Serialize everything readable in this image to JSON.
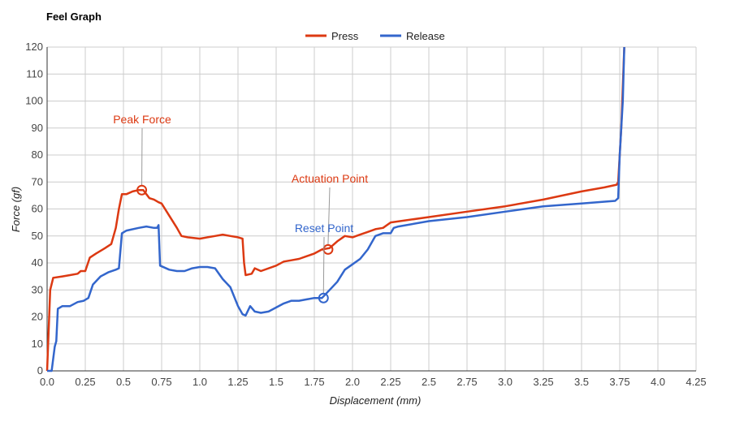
{
  "chart_data": {
    "type": "line",
    "title": "Feel Graph",
    "xlabel": "Displacement (mm)",
    "ylabel": "Force (gf)",
    "xlim": [
      0,
      4.25
    ],
    "ylim": [
      0,
      120
    ],
    "xticks": [
      "0.0",
      "0.25",
      "0.5",
      "0.75",
      "1.0",
      "1.25",
      "1.5",
      "1.75",
      "2.0",
      "2.25",
      "2.5",
      "2.75",
      "3.0",
      "3.25",
      "3.5",
      "3.75",
      "4.0",
      "4.25"
    ],
    "yticks": [
      "0",
      "10",
      "20",
      "30",
      "40",
      "50",
      "60",
      "70",
      "80",
      "90",
      "100",
      "110",
      "120"
    ],
    "grid": true,
    "legend_position": "top-center",
    "series": [
      {
        "name": "Press",
        "color": "#dc3912",
        "points": [
          [
            0.0,
            0
          ],
          [
            0.02,
            30
          ],
          [
            0.04,
            34.5
          ],
          [
            0.1,
            35
          ],
          [
            0.15,
            35.5
          ],
          [
            0.2,
            36
          ],
          [
            0.22,
            37
          ],
          [
            0.25,
            37
          ],
          [
            0.28,
            42
          ],
          [
            0.32,
            43.5
          ],
          [
            0.38,
            45.5
          ],
          [
            0.42,
            47
          ],
          [
            0.45,
            53
          ],
          [
            0.47,
            60
          ],
          [
            0.49,
            65.5
          ],
          [
            0.52,
            65.5
          ],
          [
            0.56,
            66.5
          ],
          [
            0.6,
            67
          ],
          [
            0.63,
            67
          ],
          [
            0.67,
            64
          ],
          [
            0.7,
            63.5
          ],
          [
            0.73,
            62.5
          ],
          [
            0.75,
            62
          ],
          [
            0.8,
            57.5
          ],
          [
            0.85,
            53
          ],
          [
            0.88,
            50
          ],
          [
            0.92,
            49.5
          ],
          [
            1.0,
            49
          ],
          [
            1.05,
            49.5
          ],
          [
            1.1,
            50
          ],
          [
            1.15,
            50.5
          ],
          [
            1.2,
            50
          ],
          [
            1.25,
            49.5
          ],
          [
            1.28,
            49
          ],
          [
            1.29,
            40
          ],
          [
            1.3,
            35.5
          ],
          [
            1.34,
            36
          ],
          [
            1.36,
            38
          ],
          [
            1.4,
            37
          ],
          [
            1.5,
            39
          ],
          [
            1.55,
            40.5
          ],
          [
            1.6,
            41
          ],
          [
            1.65,
            41.5
          ],
          [
            1.7,
            42.5
          ],
          [
            1.75,
            43.5
          ],
          [
            1.8,
            45
          ],
          [
            1.85,
            45.5
          ],
          [
            1.9,
            48
          ],
          [
            1.95,
            50
          ],
          [
            2.0,
            49.5
          ],
          [
            2.05,
            50.5
          ],
          [
            2.1,
            51.5
          ],
          [
            2.15,
            52.5
          ],
          [
            2.2,
            53
          ],
          [
            2.25,
            55
          ],
          [
            2.5,
            57
          ],
          [
            2.75,
            59
          ],
          [
            3.0,
            61
          ],
          [
            3.25,
            63.5
          ],
          [
            3.5,
            66.5
          ],
          [
            3.65,
            68
          ],
          [
            3.73,
            69
          ],
          [
            3.74,
            70
          ],
          [
            3.76,
            90
          ],
          [
            3.78,
            120
          ]
        ]
      },
      {
        "name": "Release",
        "color": "#3366cc",
        "points": [
          [
            0.0,
            0
          ],
          [
            0.03,
            0
          ],
          [
            0.05,
            9
          ],
          [
            0.06,
            11
          ],
          [
            0.07,
            23
          ],
          [
            0.1,
            24
          ],
          [
            0.15,
            24
          ],
          [
            0.2,
            25.5
          ],
          [
            0.24,
            26
          ],
          [
            0.27,
            27
          ],
          [
            0.3,
            32
          ],
          [
            0.35,
            35
          ],
          [
            0.4,
            36.5
          ],
          [
            0.45,
            37.5
          ],
          [
            0.47,
            38
          ],
          [
            0.49,
            51
          ],
          [
            0.52,
            52
          ],
          [
            0.6,
            53
          ],
          [
            0.65,
            53.5
          ],
          [
            0.7,
            53
          ],
          [
            0.72,
            53
          ],
          [
            0.73,
            54
          ],
          [
            0.74,
            39
          ],
          [
            0.8,
            37.5
          ],
          [
            0.85,
            37
          ],
          [
            0.9,
            37
          ],
          [
            0.95,
            38
          ],
          [
            1.0,
            38.5
          ],
          [
            1.05,
            38.5
          ],
          [
            1.1,
            38
          ],
          [
            1.15,
            34
          ],
          [
            1.2,
            31
          ],
          [
            1.25,
            24
          ],
          [
            1.28,
            21
          ],
          [
            1.3,
            20.5
          ],
          [
            1.33,
            24
          ],
          [
            1.36,
            22
          ],
          [
            1.4,
            21.5
          ],
          [
            1.45,
            22
          ],
          [
            1.5,
            23.5
          ],
          [
            1.55,
            25
          ],
          [
            1.6,
            26
          ],
          [
            1.65,
            26
          ],
          [
            1.7,
            26.5
          ],
          [
            1.75,
            27
          ],
          [
            1.8,
            27
          ],
          [
            1.85,
            30
          ],
          [
            1.9,
            33
          ],
          [
            1.95,
            37.5
          ],
          [
            2.0,
            39.5
          ],
          [
            2.05,
            41.5
          ],
          [
            2.1,
            45
          ],
          [
            2.15,
            50
          ],
          [
            2.2,
            51
          ],
          [
            2.25,
            51
          ],
          [
            2.27,
            53
          ],
          [
            2.3,
            53.5
          ],
          [
            2.5,
            55.5
          ],
          [
            2.75,
            57
          ],
          [
            3.0,
            59
          ],
          [
            3.25,
            61
          ],
          [
            3.5,
            62
          ],
          [
            3.72,
            63
          ],
          [
            3.74,
            64
          ],
          [
            3.75,
            80
          ],
          [
            3.77,
            100
          ],
          [
            3.78,
            120
          ]
        ]
      }
    ],
    "annotations": [
      {
        "label": "Peak Force",
        "x": 0.62,
        "y": 67,
        "color": "#dc3912"
      },
      {
        "label": "Actuation Point",
        "x": 1.84,
        "y": 45,
        "color": "#dc3912"
      },
      {
        "label": "Reset Point",
        "x": 1.81,
        "y": 27,
        "color": "#3366cc"
      }
    ]
  }
}
